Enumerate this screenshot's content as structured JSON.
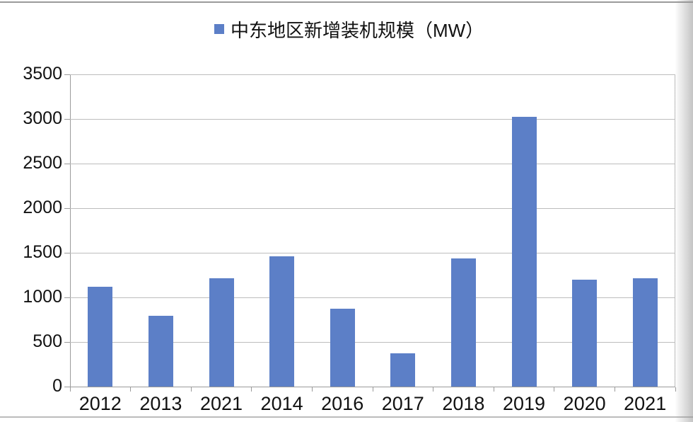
{
  "page": {
    "background": "#ffffff"
  },
  "legend": {
    "marker_color": "#5c7fc7",
    "label": "中东地区新增装机规模（MW）"
  },
  "chart_data": {
    "type": "bar",
    "title": "中东地区新增装机规模（MW）",
    "categories": [
      "2012",
      "2013",
      "2021",
      "2014",
      "2016",
      "2017",
      "2018",
      "2019",
      "2020",
      "2021"
    ],
    "values": [
      1120,
      790,
      1215,
      1460,
      870,
      370,
      1435,
      3025,
      1200,
      1215
    ],
    "series_name": "中东地区新增装机规模（MW）",
    "xlabel": "",
    "ylabel": "",
    "ylim": [
      0,
      3500
    ],
    "yticks": [
      0,
      500,
      1000,
      1500,
      2000,
      2500,
      3000,
      3500
    ],
    "grid": true,
    "legend_position": "top-center",
    "bar_color": "#5c7fc7",
    "gridline_color": "#bdbdbd",
    "axis_color": "#9a9a9a",
    "text_color": "#111111"
  }
}
